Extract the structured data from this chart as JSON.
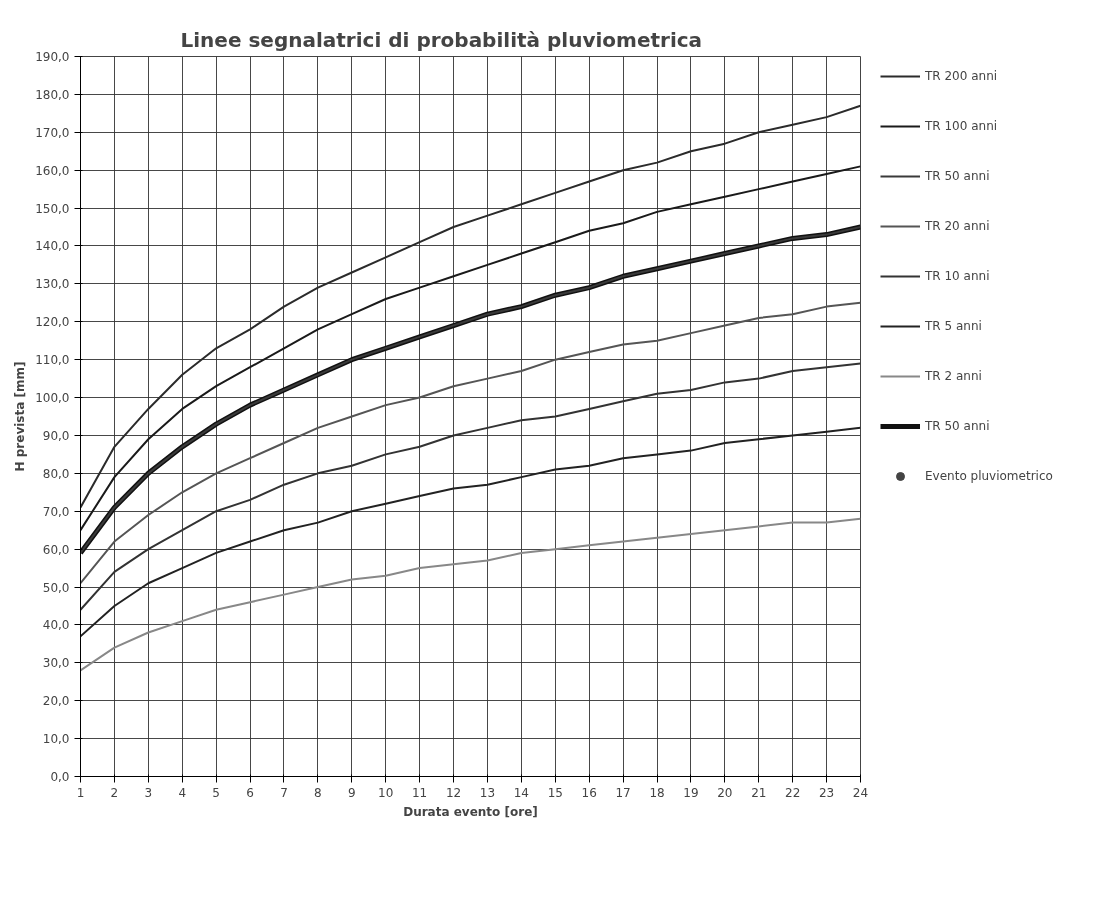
{
  "chart_data": {
    "type": "line",
    "title": "Linee segnalatrici di probabilità pluviometrica",
    "xlabel": "Durata evento [ore]",
    "ylabel": "H prevista [mm]",
    "x": [
      1,
      2,
      3,
      4,
      5,
      6,
      7,
      8,
      9,
      10,
      11,
      12,
      13,
      14,
      15,
      16,
      17,
      18,
      19,
      20,
      21,
      22,
      23,
      24
    ],
    "xlim": [
      1,
      24
    ],
    "xticks": [
      1,
      2,
      3,
      4,
      5,
      6,
      7,
      8,
      9,
      10,
      11,
      12,
      13,
      14,
      15,
      16,
      17,
      18,
      19,
      20,
      21,
      22,
      23,
      24
    ],
    "ylim": [
      0,
      190
    ],
    "yticks": [
      {
        "value": 0,
        "label": "0,0"
      },
      {
        "value": 10,
        "label": "10,0"
      },
      {
        "value": 20,
        "label": "20,0"
      },
      {
        "value": 30,
        "label": "30,0"
      },
      {
        "value": 40,
        "label": "40,0"
      },
      {
        "value": 50,
        "label": "50,0"
      },
      {
        "value": 60,
        "label": "60,0"
      },
      {
        "value": 70,
        "label": "70,0"
      },
      {
        "value": 80,
        "label": "80,0"
      },
      {
        "value": 90,
        "label": "90,0"
      },
      {
        "value": 100,
        "label": "100,0"
      },
      {
        "value": 110,
        "label": "110,0"
      },
      {
        "value": 120,
        "label": "120,0"
      },
      {
        "value": 130,
        "label": "130,0"
      },
      {
        "value": 140,
        "label": "140,0"
      },
      {
        "value": 150,
        "label": "150,0"
      },
      {
        "value": 160,
        "label": "160,0"
      },
      {
        "value": 170,
        "label": "170,0"
      },
      {
        "value": 180,
        "label": "180,0"
      },
      {
        "value": 190,
        "label": "190,0"
      }
    ],
    "grid": true,
    "legend": "right",
    "marker": "none",
    "line_style": "solid",
    "series": [
      {
        "name": "TR 200 anni",
        "color": "#2b2b2b",
        "values": [
          71,
          87,
          97,
          106,
          113,
          118,
          124,
          129,
          133,
          137,
          141,
          145,
          148,
          151,
          154,
          157,
          160,
          162,
          165,
          167,
          170,
          172,
          174,
          177
        ]
      },
      {
        "name": "TR 100 anni",
        "color": "#1a1a1a",
        "values": [
          65,
          79,
          89,
          97,
          103,
          108,
          113,
          118,
          122,
          126,
          129,
          132,
          135,
          138,
          141,
          144,
          146,
          149,
          151,
          153,
          155,
          157,
          159,
          161
        ]
      },
      {
        "name": "TR 50 anni",
        "color": "#3a3a3a",
        "values": [
          59,
          71,
          80,
          87,
          93,
          98,
          102,
          106,
          110,
          113,
          116,
          119,
          122,
          124,
          127,
          129,
          132,
          134,
          136,
          138,
          140,
          142,
          143,
          145
        ]
      },
      {
        "name": "TR 20 anni",
        "color": "#555555",
        "values": [
          51,
          62,
          69,
          75,
          80,
          84,
          88,
          92,
          95,
          98,
          100,
          103,
          105,
          107,
          110,
          112,
          114,
          115,
          117,
          119,
          121,
          122,
          124,
          125
        ]
      },
      {
        "name": "TR 10 anni",
        "color": "#333333",
        "values": [
          44,
          54,
          60,
          65,
          70,
          73,
          77,
          80,
          82,
          85,
          87,
          90,
          92,
          94,
          95,
          97,
          99,
          101,
          102,
          104,
          105,
          107,
          108,
          109
        ]
      },
      {
        "name": "TR 5 anni",
        "color": "#222222",
        "values": [
          37,
          45,
          51,
          55,
          59,
          62,
          65,
          67,
          70,
          72,
          74,
          76,
          77,
          79,
          81,
          82,
          84,
          85,
          86,
          88,
          89,
          90,
          91,
          92
        ]
      },
      {
        "name": "TR 2 anni",
        "color": "#888888",
        "values": [
          28,
          34,
          38,
          41,
          44,
          46,
          48,
          50,
          52,
          53,
          55,
          56,
          57,
          59,
          60,
          61,
          62,
          63,
          64,
          65,
          66,
          67,
          67,
          68
        ]
      },
      {
        "name": "TR 50 anni",
        "color": "#111111",
        "values": [
          59,
          71,
          80,
          87,
          93,
          98,
          102,
          106,
          110,
          113,
          116,
          119,
          122,
          124,
          127,
          129,
          132,
          134,
          136,
          138,
          140,
          142,
          143,
          145
        ]
      },
      {
        "name": "Evento pluviometrico",
        "type": "scatter",
        "marker": "circle",
        "color": "#444444",
        "values": [
          null,
          null,
          null,
          null,
          null,
          null,
          null,
          null,
          null,
          null,
          null,
          null,
          null,
          null,
          null,
          null,
          null,
          null,
          null,
          null,
          null,
          null,
          null,
          null
        ]
      }
    ]
  }
}
